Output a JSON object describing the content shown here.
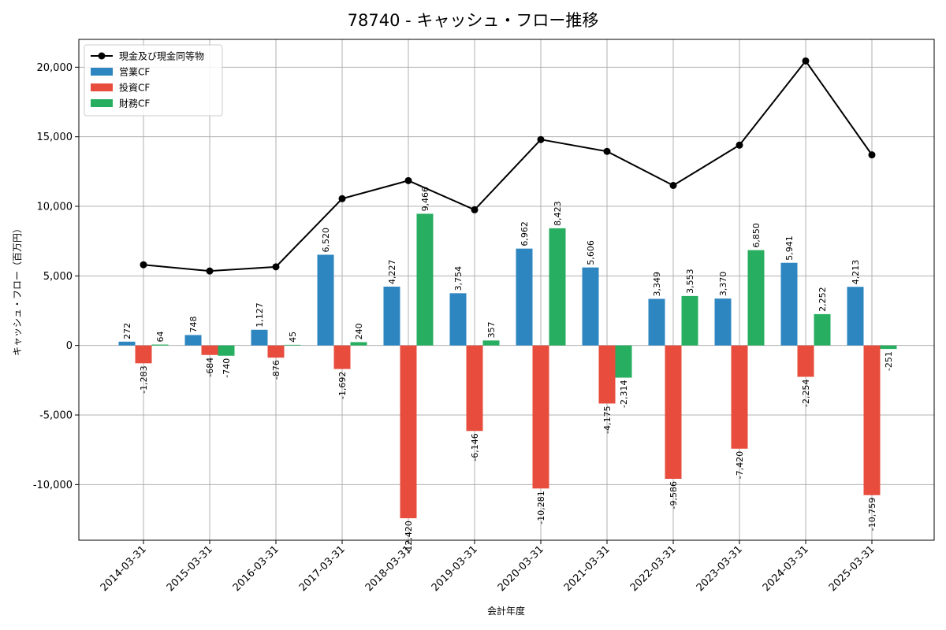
{
  "chart_data": {
    "type": "bar",
    "title": "78740 - キャッシュ・フロー推移",
    "xlabel": "会計年度",
    "ylabel": "キャッシュ・フロー（百万円）",
    "ylim": [
      -14000,
      22000
    ],
    "yticks": [
      -10000,
      -5000,
      0,
      5000,
      10000,
      15000,
      20000
    ],
    "ytick_labels": [
      "-10,000",
      "-5,000",
      "0",
      "5,000",
      "10,000",
      "15,000",
      "20,000"
    ],
    "grid": true,
    "legend_position": "top-left",
    "categories": [
      "2014-03-31",
      "2015-03-31",
      "2016-03-31",
      "2017-03-31",
      "2018-03-31",
      "2019-03-31",
      "2020-03-31",
      "2021-03-31",
      "2022-03-31",
      "2023-03-31",
      "2024-03-31",
      "2025-03-31"
    ],
    "series": [
      {
        "name": "営業CF",
        "kind": "bar",
        "color": "#2e86c1",
        "values": [
          272,
          748,
          1127,
          6520,
          4227,
          3754,
          6962,
          5606,
          3349,
          3370,
          5941,
          4213
        ],
        "labels": [
          "272",
          "748",
          "1,127",
          "6,520",
          "4,227",
          "3,754",
          "6,962",
          "5,606",
          "3,349",
          "3,370",
          "5,941",
          "4,213"
        ]
      },
      {
        "name": "投資CF",
        "kind": "bar",
        "color": "#e74c3c",
        "values": [
          -1283,
          -684,
          -876,
          -1692,
          -12420,
          -6146,
          -10281,
          -4175,
          -9586,
          -7420,
          -2254,
          -10759
        ],
        "labels": [
          "-1,283",
          "-684",
          "-876",
          "-1,692",
          "-12,420",
          "-6,146",
          "-10,281",
          "-4,175",
          "-9,586",
          "-7,420",
          "-2,254",
          "-10,759"
        ]
      },
      {
        "name": "財務CF",
        "kind": "bar",
        "color": "#27ae60",
        "values": [
          64,
          -740,
          45,
          240,
          9466,
          357,
          8423,
          -2314,
          3553,
          6850,
          2252,
          -251
        ],
        "labels": [
          "64",
          "-740",
          "45",
          "240",
          "9,466",
          "357",
          "8,423",
          "-2,314",
          "3,553",
          "6,850",
          "2,252",
          "-251"
        ]
      },
      {
        "name": "現金及び現金同等物",
        "kind": "line",
        "color": "#000000",
        "values": [
          5800,
          5350,
          5650,
          10550,
          11850,
          9750,
          14800,
          13950,
          11500,
          14400,
          20450,
          13700
        ]
      }
    ]
  }
}
